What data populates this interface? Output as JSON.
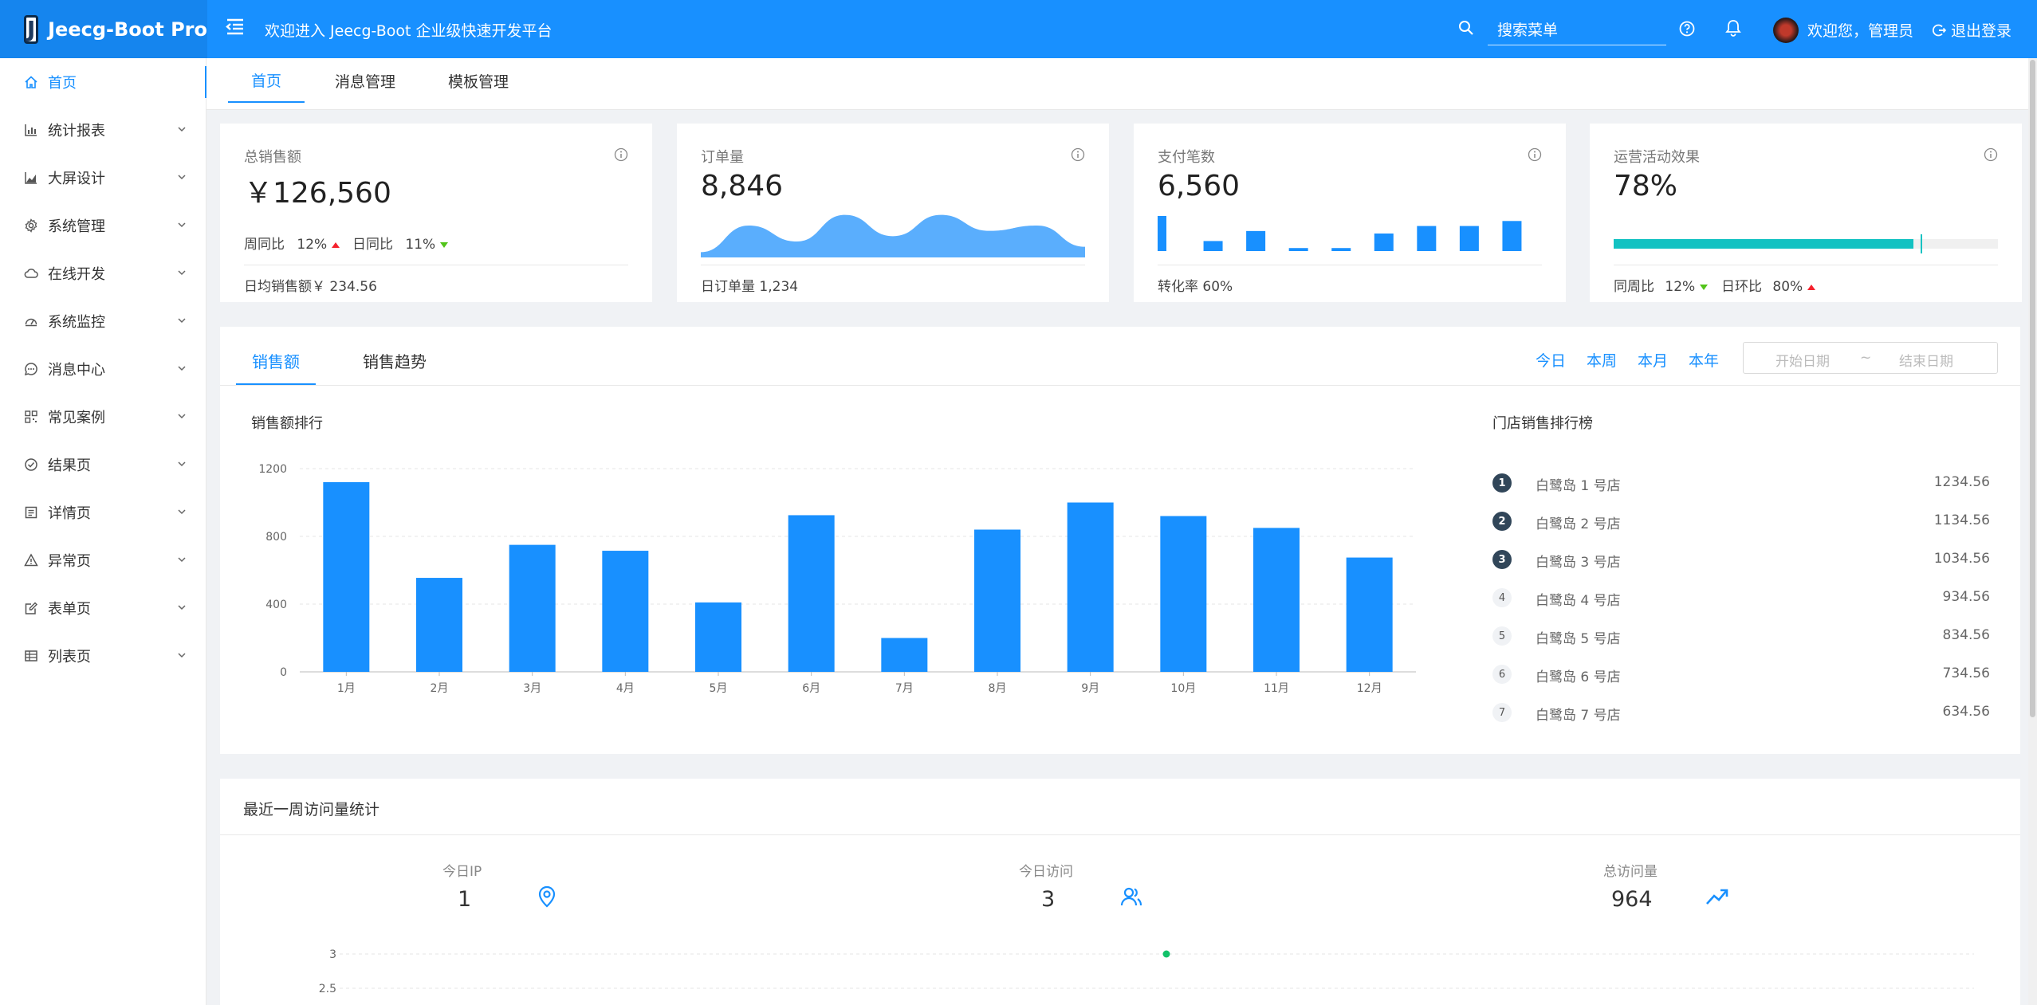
{
  "app": {
    "name": "Jeecg-Boot Pro",
    "logo_letter": "J",
    "welcome": "欢迎进入 Jeecg-Boot 企业级快速开发平台",
    "search_placeholder": "搜索菜单",
    "user_greeting": "欢迎您，管理员",
    "logout_label": "退出登录",
    "brand_color": "#1890ff"
  },
  "sidebar": {
    "items": [
      {
        "label": "首页",
        "icon": "home-icon"
      },
      {
        "label": "统计报表",
        "icon": "bar-chart-icon"
      },
      {
        "label": "大屏设计",
        "icon": "area-chart-icon"
      },
      {
        "label": "系统管理",
        "icon": "gear-icon"
      },
      {
        "label": "在线开发",
        "icon": "cloud-icon"
      },
      {
        "label": "系统监控",
        "icon": "dashboard-icon"
      },
      {
        "label": "消息中心",
        "icon": "message-icon"
      },
      {
        "label": "常见案例",
        "icon": "qrcode-icon"
      },
      {
        "label": "结果页",
        "icon": "check-circle-icon"
      },
      {
        "label": "详情页",
        "icon": "profile-icon"
      },
      {
        "label": "异常页",
        "icon": "warning-icon"
      },
      {
        "label": "表单页",
        "icon": "form-icon"
      },
      {
        "label": "列表页",
        "icon": "table-icon"
      }
    ]
  },
  "tabs": [
    "首页",
    "消息管理",
    "模板管理"
  ],
  "cards": {
    "sales": {
      "label": "总销售额",
      "value": "￥126,560",
      "week_label": "周同比",
      "week_value": "12%",
      "day_label": "日同比",
      "day_value": "11%",
      "footer": "日均销售额￥ 234.56"
    },
    "orders": {
      "label": "订单量",
      "value": "8,846",
      "footer": "日订单量 1,234"
    },
    "payments": {
      "label": "支付笔数",
      "value": "6,560",
      "footer": "转化率 60%"
    },
    "operations": {
      "label": "运营活动效果",
      "value": "78%",
      "progress": 78,
      "week_label": "同周比",
      "week_value": "12%",
      "day_label": "日环比",
      "day_value": "80%",
      "bar_color": "#13c2c2"
    }
  },
  "sales_section": {
    "tabs": [
      "销售额",
      "销售趋势"
    ],
    "ranges": [
      "今日",
      "本周",
      "本月",
      "本年"
    ],
    "start_placeholder": "开始日期",
    "separator": "~",
    "end_placeholder": "结束日期",
    "ranking_title": "门店销售排行榜",
    "ranking": [
      {
        "rank": "1",
        "name": "白鹭岛 1 号店",
        "value": "1234.56"
      },
      {
        "rank": "2",
        "name": "白鹭岛 2 号店",
        "value": "1134.56"
      },
      {
        "rank": "3",
        "name": "白鹭岛 3 号店",
        "value": "1034.56"
      },
      {
        "rank": "4",
        "name": "白鹭岛 4 号店",
        "value": "934.56"
      },
      {
        "rank": "5",
        "name": "白鹭岛 5 号店",
        "value": "834.56"
      },
      {
        "rank": "6",
        "name": "白鹭岛 6 号店",
        "value": "734.56"
      },
      {
        "rank": "7",
        "name": "白鹭岛 7 号店",
        "value": "634.56"
      }
    ]
  },
  "visits": {
    "title": "最近一周访问量统计",
    "stats": [
      {
        "label": "今日IP",
        "value": "1",
        "icon": "location-icon"
      },
      {
        "label": "今日访问",
        "value": "3",
        "icon": "team-icon"
      },
      {
        "label": "总访问量",
        "value": "964",
        "icon": "rise-icon"
      }
    ]
  },
  "chart_data": [
    {
      "type": "bar",
      "title": "销售额排行",
      "categories": [
        "1月",
        "2月",
        "3月",
        "4月",
        "5月",
        "6月",
        "7月",
        "8月",
        "9月",
        "10月",
        "11月",
        "12月"
      ],
      "values": [
        1120,
        555,
        750,
        715,
        410,
        925,
        200,
        840,
        1000,
        920,
        850,
        675
      ],
      "ylim": [
        0,
        1200
      ],
      "yticks": [
        0,
        400,
        800,
        1200
      ],
      "grid": true,
      "color": "#1890ff"
    },
    {
      "type": "area",
      "title": "订单量",
      "values": [
        1,
        6,
        3,
        8,
        4,
        8,
        5,
        6,
        2
      ],
      "color": "#5aaefd"
    },
    {
      "type": "bar",
      "title": "支付笔数",
      "values": [
        7,
        2,
        4,
        0.6,
        0.6,
        3.5,
        5,
        5,
        6
      ],
      "color": "#1890ff"
    },
    {
      "type": "line",
      "title": "最近一周访问量统计",
      "yticks": [
        "3",
        "2.5"
      ],
      "points": [
        {
          "x": 5,
          "y": 3
        }
      ],
      "color": "#13c26a"
    }
  ]
}
